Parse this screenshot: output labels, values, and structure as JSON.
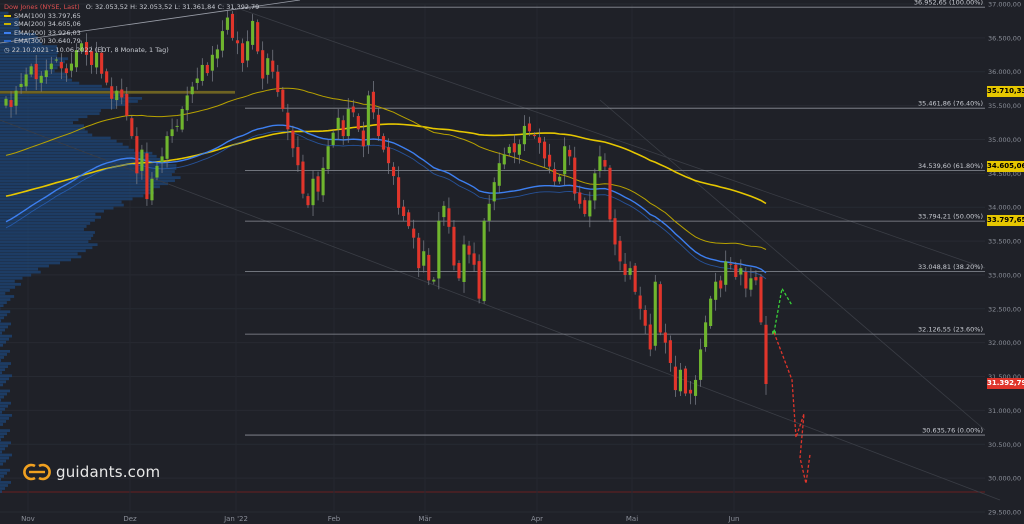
{
  "header": {
    "title": "Dow Jones (NYSE, Last)",
    "ohlc": "O: 32.053,52  H: 32.053,52  L: 31.361,84  C: 31.392,79",
    "range": "22.10.2021 - 10.06.2022  (EDT, 8 Monate, 1 Tag)"
  },
  "indicators": [
    {
      "label": "SMA(100) 33.797,65",
      "color": "#e6c700"
    },
    {
      "label": "SMA(200) 34.605,06",
      "color": "#c9b100"
    },
    {
      "label": "EMA(200) 33.926,03",
      "color": "#3d7ff0"
    },
    {
      "label": "EMA(300) 30.640,79",
      "color": "#2a66c8"
    }
  ],
  "brand": "guidants.com",
  "chart_data": {
    "type": "candlestick",
    "x_labels": [
      "Nov",
      "Dez",
      "Jan '22",
      "Feb",
      "Mär",
      "Apr",
      "Mai",
      "Jun"
    ],
    "y_ticks": [
      "37.000,00",
      "36.500,00",
      "36.000,00",
      "35.500,00",
      "35.000,00",
      "34.500,00",
      "34.000,00",
      "33.500,00",
      "33.000,00",
      "32.500,00",
      "32.000,00",
      "31.500,00",
      "31.000,00",
      "30.500,00",
      "30.000,00",
      "29.500,00"
    ],
    "ylim": [
      29500,
      37000
    ],
    "fib_levels": [
      {
        "value": 36952.65,
        "label": "36.952,65 (100.00%)"
      },
      {
        "value": 35461.86,
        "label": "35.461,86 (76.40%)"
      },
      {
        "value": 34539.6,
        "label": "34.539,60 (61.80%)"
      },
      {
        "value": 33794.21,
        "label": "33.794,21 (50.00%)"
      },
      {
        "value": 33048.81,
        "label": "33.048,81 (38.20%)"
      },
      {
        "value": 32126.55,
        "label": "32.126,55 (23.60%)"
      },
      {
        "value": 30635.76,
        "label": "30.635,76 (0.00%)"
      }
    ],
    "price_tags": [
      {
        "value": 35710.33,
        "label": "35.710,33",
        "bg": "#e6c700",
        "fg": "#000000"
      },
      {
        "value": 34605.06,
        "label": "34.605,06",
        "bg": "#e6c700",
        "fg": "#000000"
      },
      {
        "value": 33797.65,
        "label": "33.797,65",
        "bg": "#e6c700",
        "fg": "#000000"
      },
      {
        "value": 31392.79,
        "label": "31.392,79",
        "bg": "#e0352b",
        "fg": "#ffffff"
      }
    ],
    "closes": [
      35600,
      35480,
      35720,
      35820,
      35960,
      36080,
      35890,
      35940,
      36020,
      36120,
      36180,
      36050,
      35980,
      36120,
      36320,
      36420,
      36250,
      36100,
      36280,
      35970,
      35840,
      35600,
      35720,
      35620,
      35350,
      35050,
      34500,
      34850,
      34120,
      34420,
      34610,
      34750,
      35050,
      35150,
      35200,
      35450,
      35650,
      35780,
      35900,
      36100,
      35980,
      36250,
      36330,
      36600,
      36800,
      36500,
      36420,
      36130,
      36450,
      36750,
      36300,
      35900,
      36200,
      36000,
      35700,
      35450,
      35150,
      34870,
      34620,
      34200,
      34030,
      34420,
      34230,
      34580,
      34900,
      35100,
      35320,
      35050,
      35450,
      35400,
      35150,
      34900,
      35650,
      35400,
      35050,
      34850,
      34650,
      34460,
      33990,
      33870,
      33720,
      33550,
      33100,
      33350,
      32920,
      32930,
      33800,
      34020,
      33710,
      33140,
      32950,
      33450,
      33300,
      33150,
      32650,
      33800,
      34050,
      34370,
      34650,
      34780,
      34890,
      34810,
      34930,
      35200,
      35120,
      35050,
      34950,
      34720,
      34600,
      34380,
      34450,
      34900,
      34750,
      34200,
      34050,
      33900,
      34100,
      34500,
      34750,
      34600,
      33820,
      33450,
      33200,
      33000,
      33100,
      32750,
      32500,
      32250,
      31900,
      32900,
      32150,
      32000,
      31700,
      31300,
      31600,
      31250,
      31250,
      31450,
      31900,
      32300,
      32650,
      32900,
      32800,
      33200,
      33150,
      32970,
      33100,
      32800,
      32950,
      32920,
      32300,
      31390
    ]
  }
}
